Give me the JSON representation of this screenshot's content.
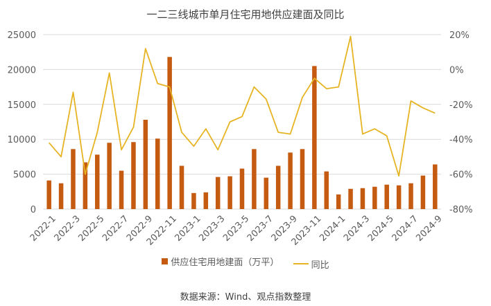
{
  "colors": {
    "bar": "#C55A11",
    "line": "#E6B422",
    "grid": "#D9D9D9",
    "text": "#595959"
  },
  "source": "数据来源：Wind、观点指数整理",
  "chart_data": {
    "type": "bar+line",
    "title": "一二三线城市单月住宅用地供应建面及同比",
    "x": [
      "2022-1",
      "2022-2",
      "2022-3",
      "2022-4",
      "2022-5",
      "2022-6",
      "2022-7",
      "2022-8",
      "2022-9",
      "2022-10",
      "2022-11",
      "2022-12",
      "2023-1",
      "2023-2",
      "2023-3",
      "2023-4",
      "2023-5",
      "2023-6",
      "2023-7",
      "2023-8",
      "2023-9",
      "2023-10",
      "2023-11",
      "2023-12",
      "2024-1",
      "2024-2",
      "2024-3",
      "2024-4",
      "2024-5",
      "2024-6",
      "2024-7",
      "2024-8",
      "2024-9"
    ],
    "x_tick_labels": [
      "2022-1",
      "2022-3",
      "2022-5",
      "2022-7",
      "2022-9",
      "2022-11",
      "2023-1",
      "2023-3",
      "2023-5",
      "2023-7",
      "2023-9",
      "2023-11",
      "2024-1",
      "2024-3",
      "2024-5",
      "2024-7",
      "2024-9"
    ],
    "series": [
      {
        "name": "供应住宅用地建面（万平）",
        "type": "bar",
        "axis": "left",
        "values": [
          4100,
          3700,
          8600,
          6700,
          7800,
          9500,
          5500,
          9600,
          12800,
          10100,
          21800,
          6200,
          2300,
          2400,
          4600,
          4700,
          5800,
          8600,
          4500,
          6200,
          8100,
          8600,
          20500,
          5400,
          2100,
          2900,
          3000,
          3200,
          3500,
          3400,
          3700,
          4800,
          6400
        ]
      },
      {
        "name": "同比",
        "type": "line",
        "axis": "right",
        "values": [
          -42,
          -50,
          -13,
          -60,
          -36,
          -2,
          -46,
          -33,
          12,
          -8,
          -10,
          -36,
          -44,
          -34,
          -46,
          -30,
          -27,
          -10,
          -17,
          -36,
          -37,
          -16,
          -5,
          -11,
          -10,
          19,
          -37,
          -34,
          -38,
          -61,
          -18,
          -22,
          -25
        ]
      }
    ],
    "y_left": {
      "min": 0,
      "max": 25000,
      "ticks": [
        0,
        5000,
        10000,
        15000,
        20000,
        25000
      ]
    },
    "y_right": {
      "min": -80,
      "max": 20,
      "ticks": [
        20,
        0,
        -20,
        -40,
        -60,
        -80
      ],
      "tick_labels": [
        "20%",
        "0%",
        "-20%",
        "-40%",
        "-60%",
        "-80%"
      ]
    },
    "legend_position": "bottom",
    "grid": "horizontal"
  }
}
